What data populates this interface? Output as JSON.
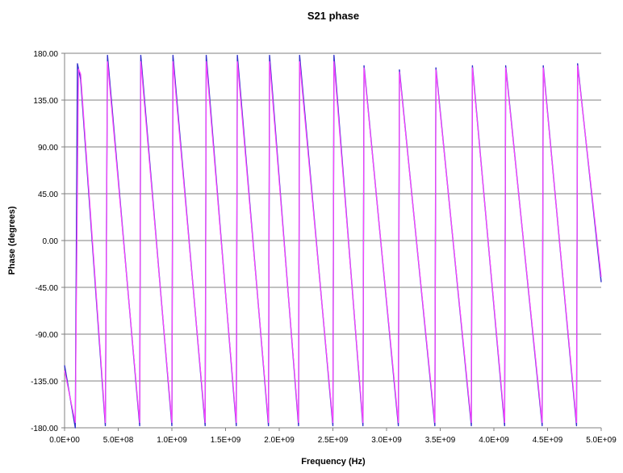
{
  "chart_data": {
    "type": "line",
    "title": "S21 phase",
    "xlabel": "Frequency (Hz)",
    "ylabel": "Phase (degrees)",
    "xlim": [
      0,
      5000000000
    ],
    "ylim": [
      -180,
      180
    ],
    "y_ticks": [
      180,
      135,
      90,
      45,
      0,
      -45,
      -90,
      -135,
      -180
    ],
    "y_tick_labels": [
      "180.00",
      "135.00",
      "90.00",
      "45.00",
      "0.00",
      "-45.00",
      "-90.00",
      "-135.00",
      "-180.00"
    ],
    "x_ticks": [
      0,
      500000000,
      1000000000,
      1500000000,
      2000000000,
      2500000000,
      3000000000,
      3500000000,
      4000000000,
      4500000000,
      5000000000
    ],
    "x_tick_labels": [
      "0.0E+00",
      "5.0E+08",
      "1.0E+09",
      "1.5E+09",
      "2.0E+09",
      "2.5E+09",
      "3.0E+09",
      "3.5E+09",
      "4.0E+09",
      "4.5E+09",
      "5.0E+09"
    ],
    "grid": "horizontal",
    "legend": "none",
    "series": [
      {
        "color": "#3333cc",
        "points": [
          [
            0,
            -120
          ],
          [
            100000000,
            -180
          ],
          [
            120000000,
            170
          ],
          [
            150000000,
            155
          ],
          [
            380000000,
            -178
          ],
          [
            400000000,
            178
          ],
          [
            700000000,
            -178
          ],
          [
            710000000,
            178
          ],
          [
            1000000000,
            -178
          ],
          [
            1010000000,
            178
          ],
          [
            1310000000,
            -178
          ],
          [
            1320000000,
            178
          ],
          [
            1600000000,
            -178
          ],
          [
            1610000000,
            178
          ],
          [
            1900000000,
            -178
          ],
          [
            1910000000,
            178
          ],
          [
            2180000000,
            -178
          ],
          [
            2190000000,
            178
          ],
          [
            2500000000,
            -178
          ],
          [
            2510000000,
            178
          ],
          [
            2780000000,
            -178
          ],
          [
            2790000000,
            168
          ],
          [
            3110000000,
            -178
          ],
          [
            3120000000,
            164
          ],
          [
            3450000000,
            -178
          ],
          [
            3460000000,
            166
          ],
          [
            3790000000,
            -178
          ],
          [
            3800000000,
            168
          ],
          [
            4100000000,
            -178
          ],
          [
            4110000000,
            168
          ],
          [
            4450000000,
            -178
          ],
          [
            4460000000,
            168
          ],
          [
            4770000000,
            -178
          ],
          [
            4780000000,
            170
          ],
          [
            5000000000,
            -40
          ]
        ]
      },
      {
        "color": "#ff44ff",
        "points": [
          [
            0,
            -125
          ],
          [
            100000000,
            -175
          ],
          [
            130000000,
            165
          ],
          [
            150000000,
            160
          ],
          [
            380000000,
            -175
          ],
          [
            400000000,
            172
          ],
          [
            700000000,
            -175
          ],
          [
            710000000,
            172
          ],
          [
            1000000000,
            -175
          ],
          [
            1010000000,
            172
          ],
          [
            1310000000,
            -175
          ],
          [
            1320000000,
            172
          ],
          [
            1600000000,
            -175
          ],
          [
            1610000000,
            172
          ],
          [
            1900000000,
            -175
          ],
          [
            1910000000,
            172
          ],
          [
            2180000000,
            -175
          ],
          [
            2190000000,
            172
          ],
          [
            2500000000,
            -175
          ],
          [
            2510000000,
            172
          ],
          [
            2780000000,
            -175
          ],
          [
            2790000000,
            166
          ],
          [
            3110000000,
            -175
          ],
          [
            3120000000,
            162
          ],
          [
            3450000000,
            -175
          ],
          [
            3460000000,
            164
          ],
          [
            3790000000,
            -175
          ],
          [
            3800000000,
            166
          ],
          [
            4100000000,
            -175
          ],
          [
            4110000000,
            166
          ],
          [
            4450000000,
            -175
          ],
          [
            4460000000,
            166
          ],
          [
            4770000000,
            -175
          ],
          [
            4780000000,
            168
          ],
          [
            5000000000,
            -35
          ]
        ]
      }
    ]
  }
}
